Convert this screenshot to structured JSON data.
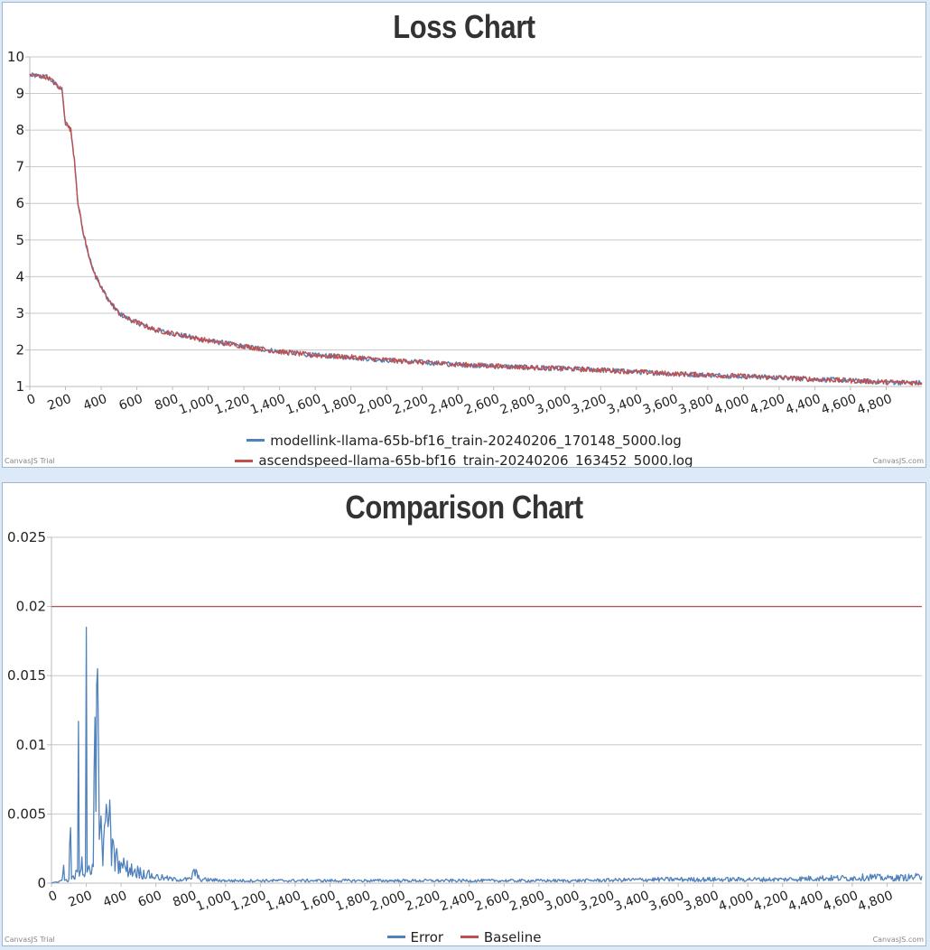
{
  "chart_data": [
    {
      "type": "line",
      "title": "Loss Chart",
      "xlabel": "",
      "ylabel": "",
      "xlim": [
        0,
        5000
      ],
      "ylim": [
        1,
        10
      ],
      "x_ticks": [
        0,
        200,
        400,
        600,
        800,
        1000,
        1200,
        1400,
        1600,
        1800,
        2000,
        2200,
        2400,
        2600,
        2800,
        3000,
        3200,
        3400,
        3600,
        3800,
        4000,
        4200,
        4400,
        4600,
        4800
      ],
      "x_tick_labels": [
        "0",
        "200",
        "400",
        "600",
        "800",
        "1,000",
        "1,200",
        "1,400",
        "1,600",
        "1,800",
        "2,000",
        "2,200",
        "2,400",
        "2,600",
        "2,800",
        "3,000",
        "3,200",
        "3,400",
        "3,600",
        "3,800",
        "4,000",
        "4,200",
        "4,400",
        "4,600",
        "4,800"
      ],
      "y_ticks": [
        1,
        2,
        3,
        4,
        5,
        6,
        7,
        8,
        9,
        10
      ],
      "y_tick_labels": [
        "1",
        "2",
        "3",
        "4",
        "5",
        "6",
        "7",
        "8",
        "9",
        "10"
      ],
      "grid": "horizontal",
      "legend_position": "bottom",
      "series": [
        {
          "name": "modellink-llama-65b-bf16_train-20240206_170148_5000.log",
          "color": "#4f81bc",
          "x": [
            0,
            100,
            180,
            200,
            230,
            250,
            270,
            300,
            330,
            360,
            400,
            450,
            500,
            550,
            600,
            700,
            800,
            1000,
            1200,
            1400,
            1600,
            1800,
            2000,
            2400,
            2800,
            3200,
            3600,
            4000,
            4400,
            4800,
            5000
          ],
          "y": [
            9.5,
            9.45,
            9.1,
            8.2,
            8.0,
            7.2,
            6.0,
            5.2,
            4.6,
            4.1,
            3.7,
            3.3,
            3.0,
            2.85,
            2.75,
            2.55,
            2.45,
            2.25,
            2.1,
            1.95,
            1.85,
            1.8,
            1.72,
            1.6,
            1.52,
            1.45,
            1.35,
            1.28,
            1.2,
            1.12,
            1.1
          ]
        },
        {
          "name": "ascendspeed-llama-65b-bf16_train-20240206_163452_5000.log",
          "color": "#c0504e",
          "x": [
            0,
            100,
            180,
            200,
            230,
            250,
            270,
            300,
            330,
            360,
            400,
            450,
            500,
            550,
            600,
            700,
            800,
            1000,
            1200,
            1400,
            1600,
            1800,
            2000,
            2400,
            2800,
            3200,
            3600,
            4000,
            4400,
            4800,
            5000
          ],
          "y": [
            9.5,
            9.45,
            9.1,
            8.2,
            8.0,
            7.2,
            6.0,
            5.2,
            4.6,
            4.1,
            3.7,
            3.3,
            3.0,
            2.85,
            2.75,
            2.55,
            2.45,
            2.25,
            2.1,
            1.95,
            1.85,
            1.8,
            1.72,
            1.6,
            1.52,
            1.45,
            1.35,
            1.28,
            1.2,
            1.12,
            1.1
          ]
        }
      ]
    },
    {
      "type": "line",
      "title": "Comparison Chart",
      "xlabel": "",
      "ylabel": "",
      "xlim": [
        0,
        5000
      ],
      "ylim": [
        0,
        0.025
      ],
      "x_ticks": [
        0,
        200,
        400,
        600,
        800,
        1000,
        1200,
        1400,
        1600,
        1800,
        2000,
        2200,
        2400,
        2600,
        2800,
        3000,
        3200,
        3400,
        3600,
        3800,
        4000,
        4200,
        4400,
        4600,
        4800
      ],
      "x_tick_labels": [
        "0",
        "200",
        "400",
        "600",
        "800",
        "1,000",
        "1,200",
        "1,400",
        "1,600",
        "1,800",
        "2,000",
        "2,200",
        "2,400",
        "2,600",
        "2,800",
        "3,000",
        "3,200",
        "3,400",
        "3,600",
        "3,800",
        "4,000",
        "4,200",
        "4,400",
        "4,600",
        "4,800"
      ],
      "y_ticks": [
        0,
        0.005,
        0.01,
        0.015,
        0.02,
        0.025
      ],
      "y_tick_labels": [
        "0",
        "0.005",
        "0.01",
        "0.015",
        "0.02",
        "0.025"
      ],
      "grid": "horizontal",
      "legend_position": "bottom",
      "series": [
        {
          "name": "Error",
          "color": "#4f81bc",
          "x": [
            0,
            60,
            70,
            75,
            100,
            110,
            115,
            150,
            155,
            160,
            170,
            175,
            180,
            195,
            200,
            205,
            220,
            240,
            245,
            250,
            260,
            270,
            280,
            290,
            300,
            305,
            310,
            320,
            330,
            340,
            350,
            360,
            370,
            380,
            390,
            400,
            420,
            450,
            500,
            550,
            600,
            650,
            700,
            800,
            820,
            850,
            1000,
            1500,
            2000,
            2500,
            3000,
            3500,
            4000,
            4200,
            4400,
            4600,
            4700,
            4800,
            5000
          ],
          "y": [
            0,
            0.0002,
            0.0013,
            0.0002,
            0.0003,
            0.004,
            0.0003,
            0.0008,
            0.0117,
            0.0005,
            0.001,
            0.0019,
            0.0006,
            0.0008,
            0.0185,
            0.0008,
            0.001,
            0.0012,
            0.008,
            0.012,
            0.0144,
            0.01,
            0.004,
            0.003,
            0.0032,
            0.0042,
            0.0045,
            0.005,
            0.0047,
            0.004,
            0.0032,
            0.0025,
            0.0021,
            0.0018,
            0.0016,
            0.0015,
            0.0013,
            0.0011,
            0.0009,
            0.0007,
            0.0005,
            0.0004,
            0.0003,
            0.0003,
            0.001,
            0.0003,
            0.0002,
            0.0002,
            0.0002,
            0.0002,
            0.0002,
            0.0003,
            0.0003,
            0.0003,
            0.0004,
            0.0004,
            0.0005,
            0.0004,
            0.0005
          ]
        },
        {
          "name": "Baseline",
          "color": "#c0504e",
          "x": [
            0,
            5000
          ],
          "y": [
            0.02,
            0.02
          ]
        }
      ]
    }
  ],
  "watermarks": {
    "left": "CanvasJS Trial",
    "right": "CanvasJS.com"
  }
}
